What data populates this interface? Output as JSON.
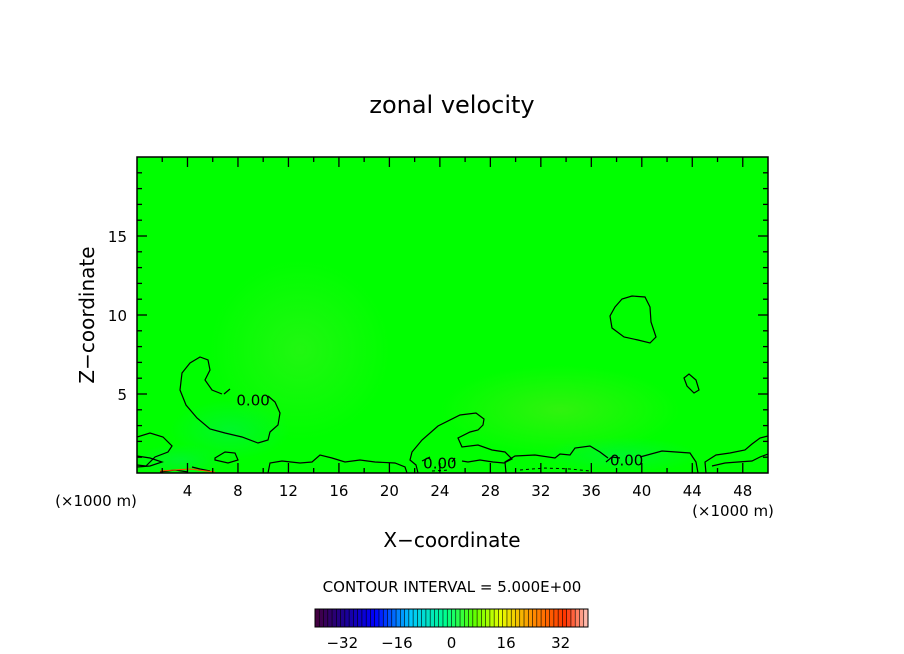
{
  "chart_data": {
    "type": "contour",
    "title": "zonal velocity",
    "xlabel": "X−coordinate",
    "ylabel": "Z−coordinate",
    "x_unit_left": "(×1000 m)",
    "x_unit_right": "(×1000 m)",
    "xlim": [
      0,
      50
    ],
    "ylim": [
      0,
      20
    ],
    "x_ticks": [
      4,
      8,
      12,
      16,
      20,
      24,
      28,
      32,
      36,
      40,
      44,
      48
    ],
    "y_ticks": [
      5,
      10,
      15
    ],
    "contour_interval_text": "CONTOUR INTERVAL = 5.000E+00",
    "contour_labels": [
      {
        "text": "0.00",
        "x": 9.2,
        "y": 4.6
      },
      {
        "text": "0.00",
        "x": 24.0,
        "y": 0.6
      },
      {
        "text": "0.00",
        "x": 38.8,
        "y": 0.8
      }
    ],
    "colorbar": {
      "min": -40,
      "max": 40,
      "ticks": [
        -32,
        -16,
        0,
        16,
        32
      ]
    },
    "background_color": "#00ff00"
  }
}
